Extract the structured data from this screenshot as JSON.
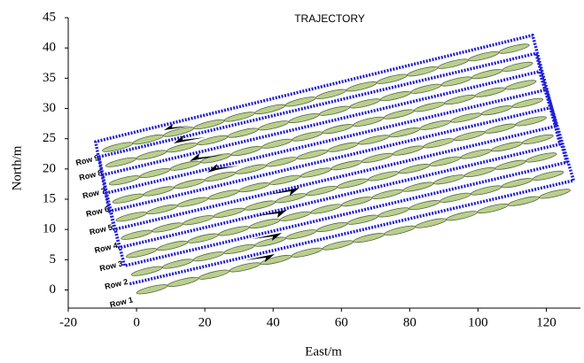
{
  "chart_data": {
    "type": "trajectory",
    "title": "TRAJECTORY",
    "x_label": "East/m",
    "y_label": "North/m",
    "xlim": [
      -20,
      130
    ],
    "ylim": [
      -3,
      45
    ],
    "xticks": [
      -20,
      0,
      20,
      40,
      60,
      80,
      100,
      120
    ],
    "yticks": [
      0,
      5,
      10,
      15,
      20,
      25,
      30,
      35,
      40,
      45
    ],
    "trajectory": {
      "color": "#1f1fd6",
      "x": [
        -2,
        128,
        120,
        -9,
        -3.5,
        126,
        118,
        -10,
        -5,
        124,
        117,
        -11,
        -6.5,
        123,
        116,
        -12,
        -8,
        121
      ],
      "y": [
        1,
        18.1,
        33.1,
        16,
        4,
        21.1,
        36.1,
        19,
        7,
        24.1,
        39.1,
        22,
        10,
        27.1,
        42.1,
        24.5,
        13,
        30.1
      ]
    },
    "row_color": "#b8cf8f",
    "rows": [
      {
        "name": "Row 1",
        "x": [
          0,
          127
        ],
        "y": [
          -0.5,
          16.5
        ]
      },
      {
        "name": "Row 2",
        "x": [
          -1.5,
          125
        ],
        "y": [
          2.5,
          19.5
        ]
      },
      {
        "name": "Row 3",
        "x": [
          -3,
          123
        ],
        "y": [
          5.5,
          22.5
        ]
      },
      {
        "name": "Row 4",
        "x": [
          -4.5,
          122
        ],
        "y": [
          8.5,
          25.5
        ]
      },
      {
        "name": "Row 5",
        "x": [
          -6,
          120
        ],
        "y": [
          11.5,
          28.5
        ]
      },
      {
        "name": "Row 6",
        "x": [
          -7,
          119
        ],
        "y": [
          14.5,
          31.5
        ]
      },
      {
        "name": "Row 7",
        "x": [
          -8,
          117
        ],
        "y": [
          17.5,
          34.5
        ]
      },
      {
        "name": "Row 8",
        "x": [
          -9,
          116
        ],
        "y": [
          20.5,
          37.5
        ]
      },
      {
        "name": "Row 9",
        "x": [
          -10,
          115
        ],
        "y": [
          23,
          40.5
        ]
      }
    ]
  }
}
